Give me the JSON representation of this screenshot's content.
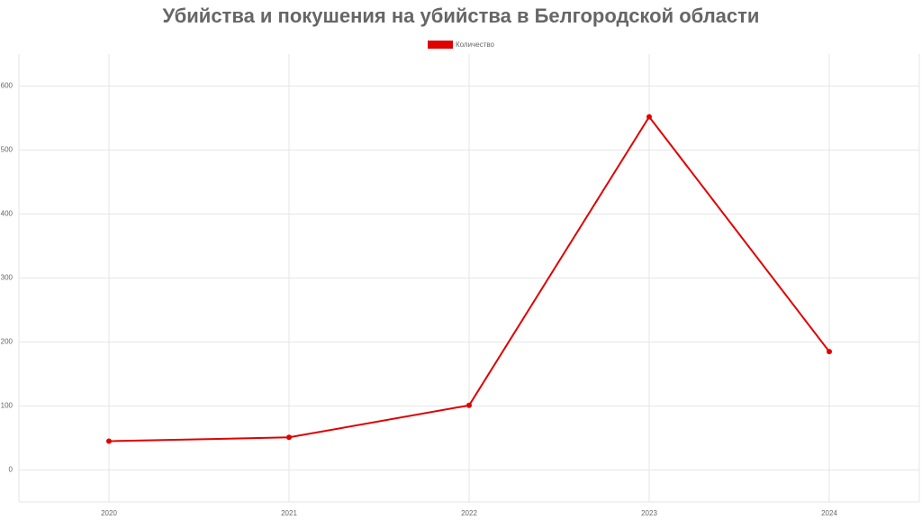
{
  "chart_data": {
    "type": "line",
    "title": "Убийства и покушения на убийства в Белгородской области",
    "categories": [
      "2020",
      "2021",
      "2022",
      "2023",
      "2024"
    ],
    "series": [
      {
        "name": "Количество",
        "color": "#e00000",
        "values": [
          45,
          51,
          101,
          552,
          185
        ]
      }
    ],
    "ylim": [
      -50,
      650
    ],
    "yticks": [
      0,
      100,
      200,
      300,
      400,
      500,
      600
    ],
    "grid": true,
    "legend": "top"
  }
}
